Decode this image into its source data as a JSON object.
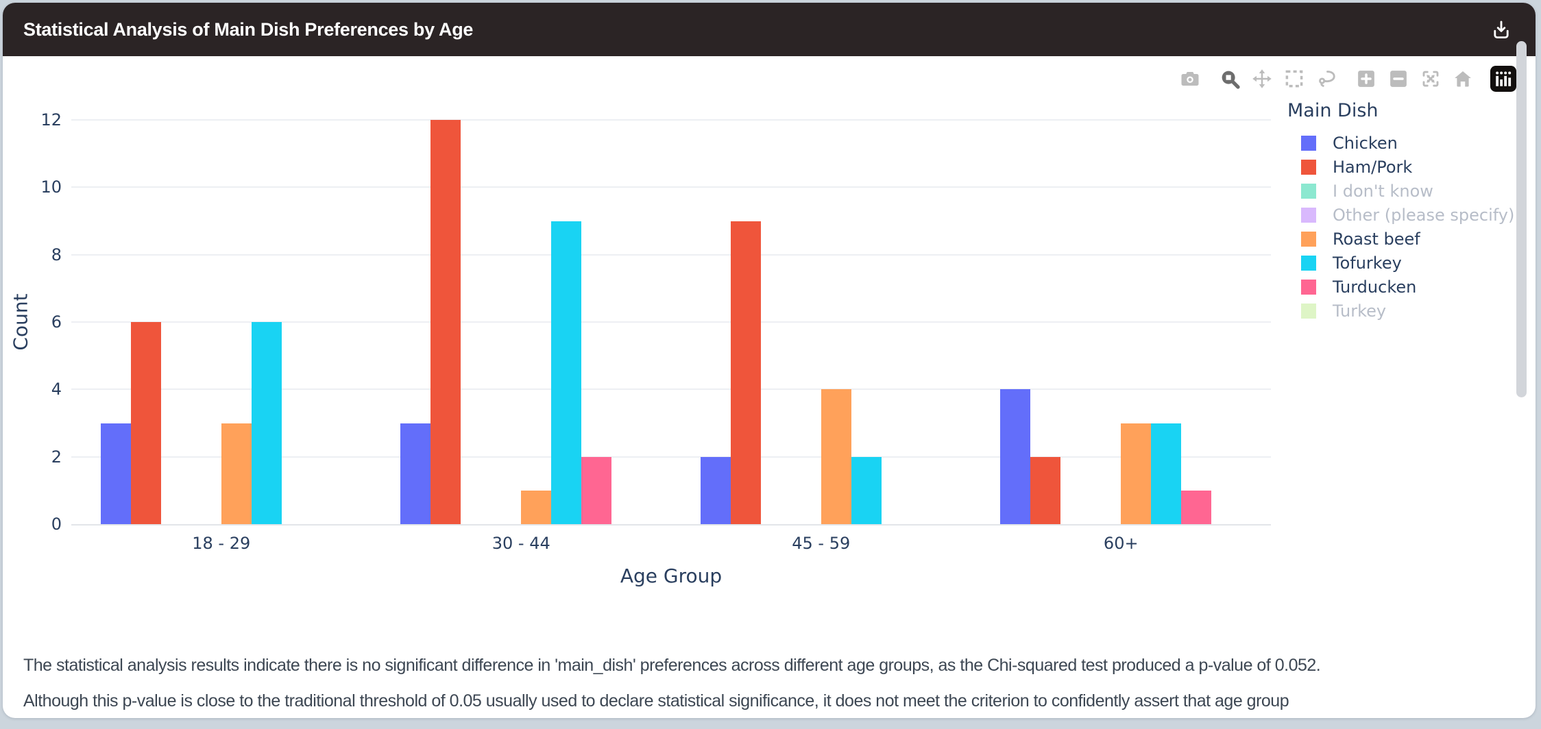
{
  "header": {
    "title": "Statistical Analysis of Main Dish Preferences by Age",
    "download_icon": "download-tray-icon"
  },
  "modebar": {
    "icons": [
      "camera-icon",
      "zoom-icon",
      "pan-icon",
      "box-select-icon",
      "lasso-select-icon",
      "zoom-in-icon",
      "zoom-out-icon",
      "autoscale-icon",
      "reset-axes-home-icon",
      "plotly-logo-icon"
    ]
  },
  "chart_data": {
    "type": "bar",
    "title": "Statistical Analysis of Main Dish Preferences by Age",
    "xlabel": "Age Group",
    "ylabel": "Count",
    "categories": [
      "18 - 29",
      "30 - 44",
      "45 - 59",
      "60+"
    ],
    "yticks": [
      0,
      2,
      4,
      6,
      8,
      10,
      12
    ],
    "ylim": [
      0,
      12.6
    ],
    "grid": true,
    "legend_title": "Main Dish",
    "legend_position": "right",
    "barmode": "group",
    "series": [
      {
        "name": "Chicken",
        "color": "#636EFA",
        "visible": true,
        "values": [
          3,
          3,
          2,
          4
        ]
      },
      {
        "name": "Ham/Pork",
        "color": "#EF553B",
        "visible": true,
        "values": [
          6,
          12,
          9,
          2
        ]
      },
      {
        "name": "I don't know",
        "color": "#00CC96",
        "visible": false,
        "values": null
      },
      {
        "name": "Other (please specify)",
        "color": "#AB63FA",
        "visible": false,
        "values": null
      },
      {
        "name": "Roast beef",
        "color": "#FFA15A",
        "visible": true,
        "values": [
          3,
          1,
          4,
          3
        ]
      },
      {
        "name": "Tofurkey",
        "color": "#19D3F3",
        "visible": true,
        "values": [
          6,
          9,
          2,
          3
        ]
      },
      {
        "name": "Turducken",
        "color": "#FF6692",
        "visible": true,
        "values": [
          0,
          2,
          0,
          1
        ]
      },
      {
        "name": "Turkey",
        "color": "#B6E880",
        "visible": false,
        "values": null
      }
    ]
  },
  "analysis": {
    "lines": [
      "The statistical analysis results indicate there is no significant difference in 'main_dish' preferences across different age groups, as the Chi-squared test produced a p-value of 0.052.",
      "Although this p-value is close to the traditional threshold of 0.05 usually used to declare statistical significance, it does not meet the criterion to confidently assert that age group"
    ]
  }
}
